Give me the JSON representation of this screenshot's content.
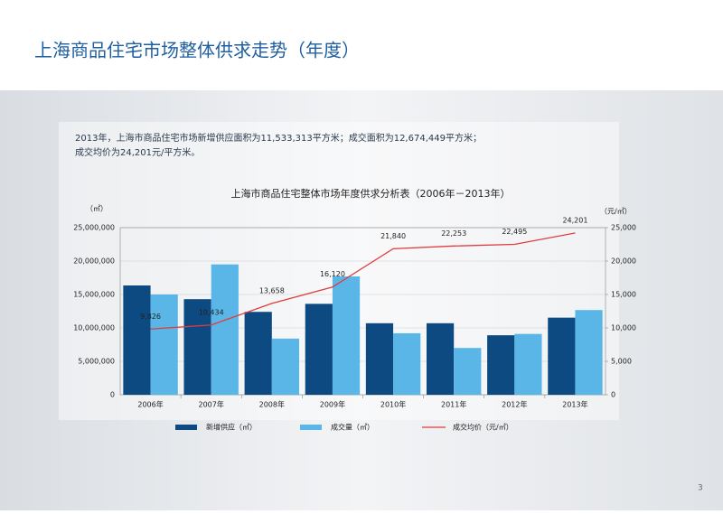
{
  "header": {
    "title": "上海商品住宅市场整体供求走势（年度）"
  },
  "description": [
    "2013年，上海市商品住宅市场新增供应面积为11,533,313平方米；成交面积为12,674,449平方米；",
    "成交均价为24,201元/平方米。"
  ],
  "page_number": "3",
  "chart_data": {
    "type": "bar",
    "title": "上海市商品住宅整体市场年度供求分析表（2006年－2013年）",
    "y_label": "（㎡）",
    "y2_label": "（元/㎡）",
    "categories": [
      "2006年",
      "2007年",
      "2008年",
      "2009年",
      "2010年",
      "2011年",
      "2012年",
      "2013年"
    ],
    "series": [
      {
        "name": "新增供应（㎡）",
        "type": "bar",
        "color": "#0d4a82",
        "values": [
          16350000,
          14300000,
          12400000,
          13600000,
          10700000,
          10700000,
          8900000,
          11533313
        ]
      },
      {
        "name": "成交量（㎡）",
        "type": "bar",
        "color": "#5ab6e6",
        "values": [
          15000000,
          19500000,
          8400000,
          17700000,
          9200000,
          7000000,
          9100000,
          12674449
        ]
      },
      {
        "name": "成交均价（元/㎡）",
        "type": "line",
        "axis": "y2",
        "color": "#e03c3c",
        "values": [
          9826,
          10434,
          13658,
          16120,
          21840,
          22253,
          22495,
          24201
        ],
        "value_labels": [
          "9,826",
          "10,434",
          "13,658",
          "16,120",
          "21,840",
          "22,253",
          "22,495",
          "24,201"
        ]
      }
    ],
    "ylim": [
      0,
      25000000
    ],
    "yticks": [
      0,
      {
        "value": 5000000,
        "label": "5,000,000"
      },
      {
        "value": 10000000,
        "label": "10,000,000"
      },
      {
        "value": 15000000,
        "label": "15,000,000"
      },
      {
        "value": 20000000,
        "label": "20,000,000"
      },
      {
        "value": 25000000,
        "label": "25,000,000"
      }
    ],
    "y2lim": [
      0,
      25000
    ],
    "y2ticks": [
      0,
      {
        "value": 5000,
        "label": "5,000"
      },
      {
        "value": 10000,
        "label": "10,000"
      },
      {
        "value": 15000,
        "label": "15,000"
      },
      {
        "value": 20000,
        "label": "20,000"
      },
      {
        "value": 25000,
        "label": "25,000"
      }
    ],
    "grid": true,
    "legend": "bottom"
  }
}
